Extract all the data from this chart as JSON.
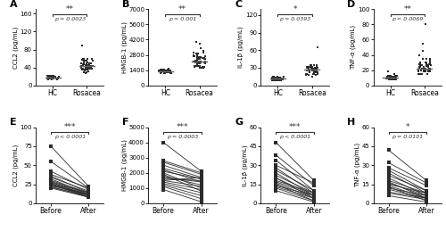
{
  "panels": [
    "A",
    "B",
    "C",
    "D",
    "E",
    "F",
    "G",
    "H"
  ],
  "scatter_top": {
    "A": {
      "ylabel": "CCL2 (pg/mL)",
      "ylim": [
        0,
        170
      ],
      "yticks": [
        0,
        40,
        80,
        120,
        160
      ],
      "xlabels": [
        "HC",
        "Rosacea"
      ],
      "pval": "p = 0.0023",
      "stars": "**",
      "HC": [
        18,
        20,
        16,
        22,
        18,
        15,
        17,
        19,
        21,
        14,
        16,
        18,
        20,
        17,
        19,
        15,
        22,
        18,
        16,
        20,
        19,
        17,
        21,
        14,
        18,
        16,
        20,
        22,
        15,
        17,
        20,
        18,
        16,
        14,
        22,
        19,
        17,
        21,
        15,
        18
      ],
      "Rosacea": [
        40,
        45,
        60,
        35,
        50,
        42,
        38,
        55,
        48,
        30,
        36,
        44,
        52,
        58,
        40,
        33,
        45,
        38,
        50,
        46,
        28,
        42,
        55,
        60,
        35,
        48,
        40,
        30,
        44,
        52,
        38,
        46,
        42,
        56,
        32,
        50,
        44,
        38,
        60,
        90,
        36,
        42,
        48,
        55,
        40,
        35,
        46,
        52,
        38,
        44,
        42,
        36,
        50,
        44,
        38,
        60,
        32,
        46,
        40,
        48
      ]
    },
    "B": {
      "ylabel": "HMGB-1 (pg/mL)",
      "ylim": [
        0,
        7000
      ],
      "yticks": [
        0,
        1400,
        2800,
        4200,
        5600,
        7000
      ],
      "xlabels": [
        "HC",
        "Rosacea"
      ],
      "pval": "p = 0.001",
      "stars": "**",
      "HC": [
        1200,
        1400,
        1300,
        1500,
        1100,
        1350,
        1250,
        1400,
        1200,
        1300,
        1450,
        1150,
        1350,
        1250,
        1400,
        1300,
        1200,
        1450,
        1100,
        1350,
        1250,
        1400,
        1300,
        1200,
        1450,
        1150,
        1350,
        1250,
        1400,
        1300,
        1200,
        1400,
        1350,
        1300,
        1450,
        1250,
        1150,
        1400,
        1300,
        1200
      ],
      "Rosacea": [
        2000,
        2500,
        1800,
        3000,
        2200,
        1600,
        2800,
        2400,
        1900,
        2100,
        2600,
        1700,
        3200,
        2300,
        1800,
        2700,
        2000,
        2400,
        1600,
        2900,
        2100,
        2500,
        1800,
        3400,
        2200,
        2000,
        2700,
        1900,
        2400,
        1700,
        2800,
        2200,
        2000,
        2600,
        1800,
        3000,
        2100,
        2500,
        1700,
        2900,
        2200,
        2400,
        1600,
        4000,
        2300,
        2700,
        1900,
        2100,
        2600,
        3800,
        2000,
        2500,
        1800,
        2200,
        2600,
        1800,
        2400,
        2000,
        2800,
        1600
      ]
    },
    "C": {
      "ylabel": "IL-1β (pg/mL)",
      "ylim": [
        0,
        130
      ],
      "yticks": [
        0,
        30,
        60,
        90,
        120
      ],
      "xlabels": [
        "HC",
        "Rosacea"
      ],
      "pval": "p = 0.0393",
      "stars": "*",
      "HC": [
        8,
        12,
        10,
        15,
        9,
        11,
        13,
        8,
        10,
        12,
        14,
        9,
        11,
        10,
        13,
        8,
        12,
        10,
        15,
        9,
        11,
        13,
        8,
        10,
        12,
        14,
        9,
        11,
        10,
        13,
        8,
        12,
        10,
        15,
        9,
        11,
        13,
        8,
        10,
        12
      ],
      "Rosacea": [
        25,
        30,
        20,
        35,
        28,
        22,
        32,
        26,
        18,
        30,
        25,
        20,
        35,
        28,
        15,
        32,
        26,
        22,
        30,
        25,
        20,
        65,
        28,
        32,
        26,
        18,
        30,
        25,
        35,
        28,
        22,
        32,
        26,
        30,
        25,
        20,
        35,
        28,
        22,
        32,
        26,
        18,
        30,
        25,
        35,
        28,
        22,
        32,
        20,
        30,
        28,
        25,
        22,
        30,
        26,
        20,
        32,
        28,
        25,
        30
      ]
    },
    "D": {
      "ylabel": "TNF-α (pg/mL)",
      "ylim": [
        0,
        100
      ],
      "yticks": [
        0,
        20,
        40,
        60,
        80,
        100
      ],
      "xlabels": [
        "HC",
        "Rosacea"
      ],
      "pval": "p = 0.0069",
      "stars": "**",
      "HC": [
        8,
        10,
        12,
        9,
        11,
        8,
        10,
        12,
        9,
        11,
        13,
        8,
        10,
        12,
        9,
        11,
        8,
        10,
        12,
        9,
        15,
        18,
        11,
        8,
        10,
        12,
        9,
        11,
        8,
        10,
        12,
        9,
        11,
        8,
        10,
        12,
        9,
        11,
        8,
        10
      ],
      "Rosacea": [
        20,
        25,
        15,
        30,
        22,
        18,
        28,
        24,
        15,
        26,
        20,
        18,
        32,
        22,
        15,
        28,
        20,
        24,
        18,
        35,
        22,
        20,
        28,
        15,
        30,
        22,
        20,
        26,
        18,
        35,
        22,
        20,
        28,
        15,
        30,
        22,
        20,
        26,
        18,
        35,
        55,
        40,
        45,
        80,
        25,
        30,
        22,
        18,
        24,
        20,
        22,
        18,
        26,
        20,
        28,
        15,
        30,
        22,
        20,
        24
      ]
    }
  },
  "lines_bottom": {
    "E": {
      "ylabel": "CCL2 (pg/mL)",
      "ylim": [
        0,
        100
      ],
      "yticks": [
        0,
        25,
        50,
        75,
        100
      ],
      "pval": "p < 0.0001",
      "stars": "***",
      "before": [
        75,
        55,
        42,
        38,
        36,
        34,
        32,
        30,
        29,
        28,
        27,
        26,
        25,
        25,
        24,
        23,
        22,
        21,
        20
      ],
      "after": [
        22,
        20,
        18,
        20,
        14,
        16,
        12,
        14,
        12,
        10,
        14,
        10,
        8,
        12,
        10,
        12,
        8,
        10,
        8
      ]
    },
    "F": {
      "ylabel": "HMGB-1 (pg/mL)",
      "ylim": [
        0,
        5000
      ],
      "yticks": [
        0,
        1000,
        2000,
        3000,
        4000,
        5000
      ],
      "pval": "p = 0.0003",
      "stars": "***",
      "before": [
        4000,
        2800,
        2700,
        2500,
        2300,
        2200,
        2100,
        2000,
        1900,
        1800,
        1700,
        1600,
        1500,
        1500,
        1400,
        1300,
        1200,
        1100,
        900
      ],
      "after": [
        2100,
        2000,
        1900,
        1700,
        1600,
        1400,
        1600,
        1000,
        800,
        1200,
        1400,
        1500,
        1700,
        1100,
        900,
        700,
        500,
        300,
        100
      ]
    },
    "G": {
      "ylabel": "IL-1β (pg/mL)",
      "ylim": [
        0,
        60
      ],
      "yticks": [
        0,
        15,
        30,
        45,
        60
      ],
      "pval": "p < 0.0001",
      "stars": "***",
      "before": [
        48,
        38,
        34,
        30,
        28,
        26,
        24,
        22,
        20,
        20,
        18,
        17,
        16,
        15,
        14,
        13,
        12,
        10
      ],
      "after": [
        18,
        14,
        10,
        16,
        8,
        10,
        6,
        8,
        4,
        6,
        8,
        6,
        4,
        2,
        6,
        4,
        2,
        1
      ]
    },
    "H": {
      "ylabel": "TNF-α (pg/mL)",
      "ylim": [
        0,
        60
      ],
      "yticks": [
        0,
        15,
        30,
        45,
        60
      ],
      "pval": "p = 0.0101",
      "stars": "*",
      "before": [
        42,
        32,
        28,
        26,
        24,
        22,
        20,
        18,
        17,
        16,
        15,
        14,
        13,
        12,
        11,
        9,
        8,
        6
      ],
      "after": [
        18,
        16,
        14,
        10,
        8,
        10,
        6,
        8,
        4,
        6,
        8,
        4,
        2,
        6,
        4,
        4,
        3,
        1
      ]
    }
  },
  "dot_color": "#2b2b2b",
  "line_color": "#2b2b2b",
  "median_color": "#666666",
  "bg_color": "#ffffff"
}
